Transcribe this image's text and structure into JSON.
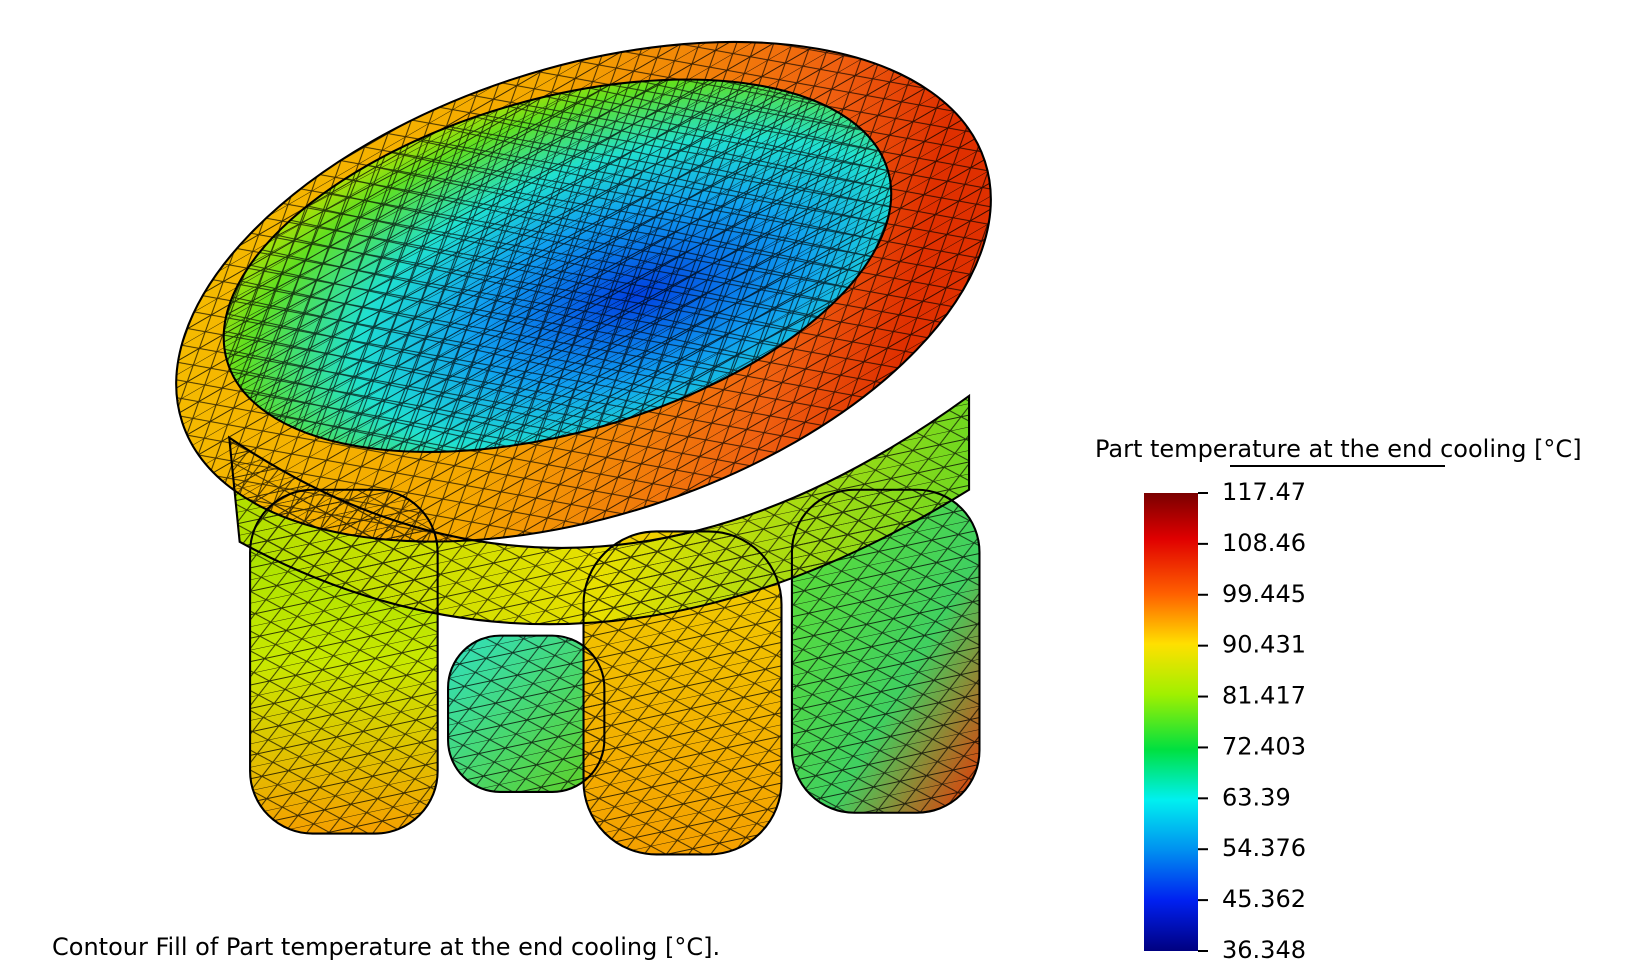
{
  "caption": "Contour Fill of Part temperature at the end cooling [°C].",
  "legend": {
    "title": "Part temperature at the end cooling [°C]",
    "ticks": [
      117.47,
      108.46,
      99.445,
      90.431,
      81.417,
      72.403,
      63.39,
      54.376,
      45.362,
      36.348
    ]
  }
}
